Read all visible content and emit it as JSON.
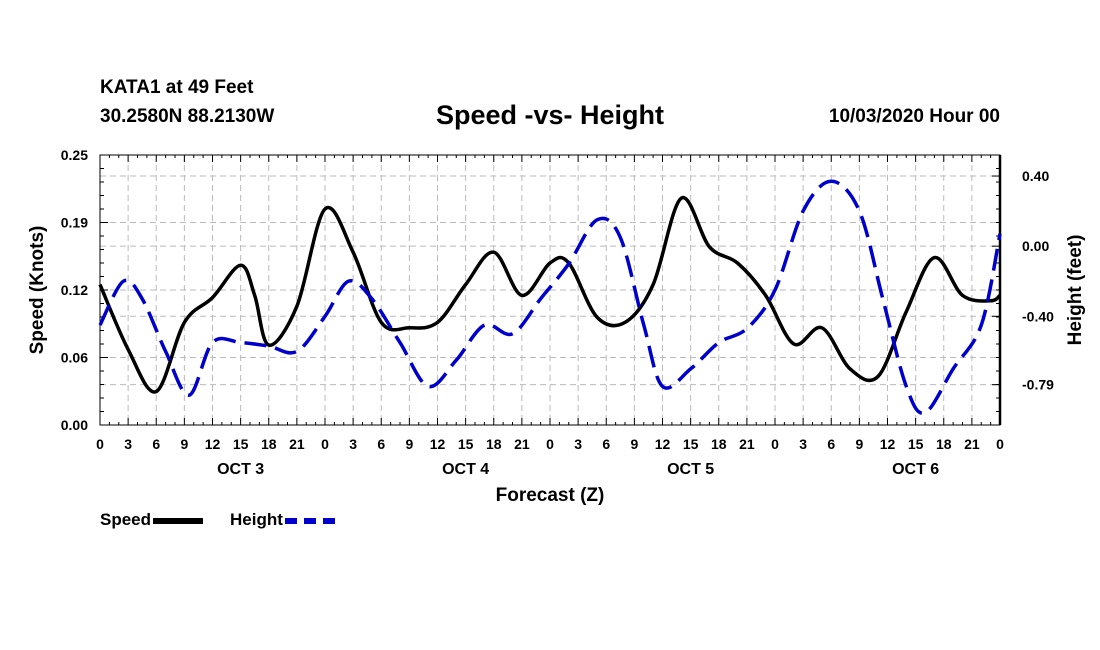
{
  "header": {
    "station": "KATA1 at 49 Feet",
    "coords": "30.2580N 88.2130W",
    "title": "Speed -vs- Height",
    "datetime": "10/03/2020 Hour 00"
  },
  "legend": {
    "speed_label": "Speed",
    "height_label": "Height"
  },
  "colors": {
    "speed": "#000000",
    "height": "#0000cc",
    "grid": "#bbbbbb"
  },
  "chart_data": {
    "type": "line",
    "title": "Speed -vs- Height",
    "xlabel": "Forecast (Z)",
    "ylabel_left": "Speed (Knots)",
    "ylabel_right": "Height (feet)",
    "x_tick_labels": [
      "0",
      "3",
      "6",
      "9",
      "12",
      "15",
      "18",
      "21",
      "0",
      "3",
      "6",
      "9",
      "12",
      "15",
      "18",
      "21",
      "0",
      "3",
      "6",
      "9",
      "12",
      "15",
      "18",
      "21",
      "0",
      "3",
      "6",
      "9",
      "12",
      "15",
      "18",
      "21",
      "0"
    ],
    "day_labels": [
      {
        "label": "OCT 3",
        "hour": 15
      },
      {
        "label": "OCT 4",
        "hour": 39
      },
      {
        "label": "OCT 5",
        "hour": 63
      },
      {
        "label": "OCT 6",
        "hour": 87
      }
    ],
    "xlim": [
      0,
      96
    ],
    "ylim_left": [
      0,
      0.25
    ],
    "left_ticks": [
      "0.00",
      "0.06",
      "0.12",
      "0.19",
      "0.25"
    ],
    "ylim_right": [
      -1.02,
      0.52
    ],
    "right_ticks": [
      {
        "label": "0.40",
        "value": 0.4
      },
      {
        "label": "0.00",
        "value": 0.0
      },
      {
        "label": "-0.40",
        "value": -0.4
      },
      {
        "label": "-0.79",
        "value": -0.79
      }
    ],
    "series": [
      {
        "name": "Speed",
        "axis": "left",
        "style": "solid",
        "x": [
          0,
          3,
          6,
          9,
          12,
          15,
          16.5,
          18,
          21,
          24,
          27,
          30,
          33,
          36,
          39,
          42,
          45,
          48,
          50,
          53,
          56,
          59,
          62,
          65,
          68,
          71,
          74,
          77,
          80,
          83,
          86,
          89,
          92,
          95,
          96
        ],
        "values": [
          0.13,
          0.07,
          0.031,
          0.095,
          0.118,
          0.148,
          0.12,
          0.074,
          0.11,
          0.2,
          0.16,
          0.095,
          0.09,
          0.095,
          0.13,
          0.16,
          0.12,
          0.15,
          0.15,
          0.1,
          0.095,
          0.13,
          0.21,
          0.165,
          0.15,
          0.12,
          0.075,
          0.09,
          0.052,
          0.045,
          0.105,
          0.155,
          0.12,
          0.115,
          0.12
        ]
      },
      {
        "name": "Height",
        "axis": "right",
        "style": "dashed",
        "x": [
          0,
          2.5,
          4.5,
          7,
          9.5,
          12,
          15,
          18,
          21,
          24,
          26.5,
          29,
          32,
          35,
          38,
          41,
          44,
          47,
          50,
          53,
          55.5,
          58,
          60,
          63,
          66,
          69,
          72,
          75,
          78,
          81,
          83.5,
          86,
          88,
          91,
          94,
          96
        ],
        "values": [
          -0.45,
          -0.2,
          -0.3,
          -0.6,
          -0.85,
          -0.55,
          -0.55,
          -0.57,
          -0.6,
          -0.4,
          -0.2,
          -0.3,
          -0.55,
          -0.8,
          -0.65,
          -0.45,
          -0.5,
          -0.3,
          -0.1,
          0.15,
          0.05,
          -0.45,
          -0.8,
          -0.7,
          -0.55,
          -0.47,
          -0.25,
          0.2,
          0.37,
          0.2,
          -0.3,
          -0.8,
          -0.95,
          -0.7,
          -0.45,
          0.07
        ]
      }
    ]
  }
}
